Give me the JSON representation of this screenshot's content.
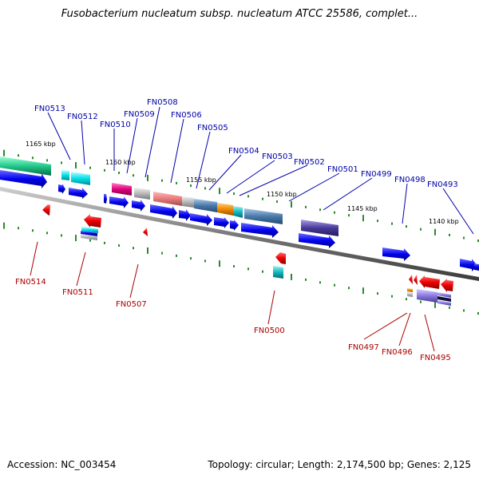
{
  "title": "Fusobacterium nucleatum subsp. nucleatum ATCC 25586, complet...",
  "footer": {
    "accession": "Accession: NC_003454",
    "stats": "Topology: circular; Length: 2,174,500 bp; Genes: 2,125"
  },
  "kbp_labels": [
    "1165 kbp",
    "1160 kbp",
    "1155 kbp",
    "1150 kbp",
    "1145 kbp",
    "1140 kbp"
  ],
  "forward_genes": [
    "FN0513",
    "FN0512",
    "FN0510",
    "FN0509",
    "FN0508",
    "FN0506",
    "FN0505",
    "FN0504",
    "FN0503",
    "FN0502",
    "FN0501",
    "FN0499",
    "FN0498",
    "FN0493"
  ],
  "reverse_genes": [
    "FN0514",
    "FN0511",
    "FN0507",
    "FN0500",
    "FN0497",
    "FN0496",
    "FN0495"
  ],
  "colors": {
    "forward_strand": "#0000ee",
    "reverse_strand": "#ee0000",
    "forward_label": "#0000aa",
    "reverse_label": "#aa0000",
    "backbone": "#808080",
    "tick": "#2a8a2a"
  }
}
